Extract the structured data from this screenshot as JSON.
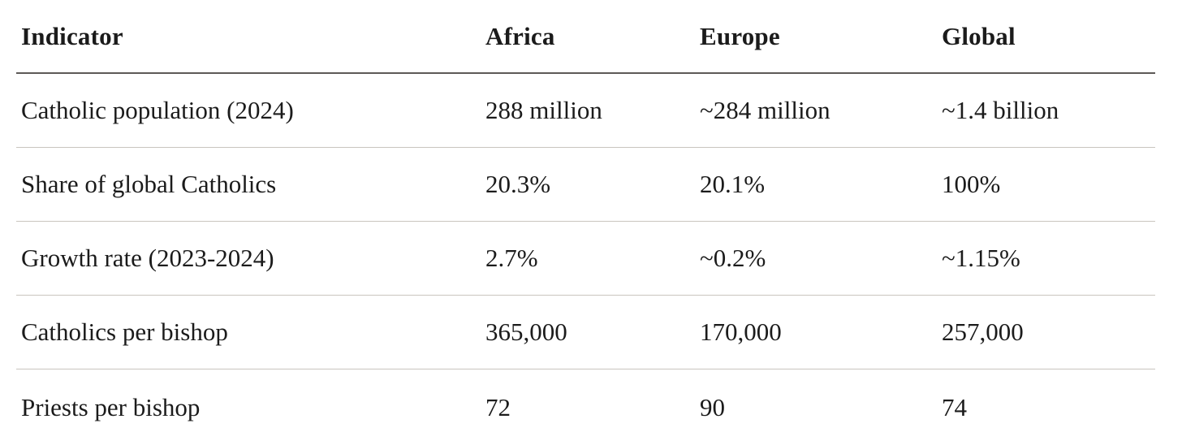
{
  "chart_data": {
    "type": "table",
    "title": "",
    "columns": [
      "Indicator",
      "Africa",
      "Europe",
      "Global"
    ],
    "rows": [
      [
        "Catholic population (2024)",
        "288 million",
        "~284 million",
        "~1.4 billion"
      ],
      [
        "Share of global Catholics",
        "20.3%",
        "20.1%",
        "100%"
      ],
      [
        "Growth rate (2023-2024)",
        "2.7%",
        "~0.2%",
        "~1.15%"
      ],
      [
        "Catholics per bishop",
        "365,000",
        "170,000",
        "257,000"
      ],
      [
        "Priests per bishop",
        "72",
        "90",
        "74"
      ]
    ],
    "layout": {
      "grid": "horizontal-rules-only",
      "header_rule_color": "#5d5a57",
      "row_rule_color": "#c9c5bf",
      "background": "#ffffff",
      "text_color": "#1b1b1b"
    }
  }
}
